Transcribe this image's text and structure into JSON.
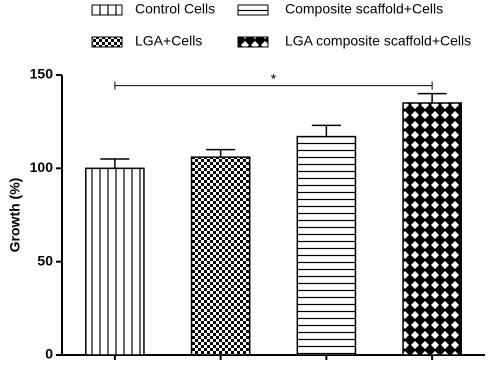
{
  "chart_data": {
    "type": "bar",
    "y_label": "Growth (%)",
    "categories": [
      "Control Cells",
      "LGA+Cells",
      "Composite scaffold+Cells",
      "LGA composite scaffold+Cells"
    ],
    "values": [
      100,
      106,
      117,
      135
    ],
    "errors": [
      5,
      4,
      6,
      5
    ],
    "patterns": [
      "vertical",
      "checker",
      "horizontal",
      "diamond"
    ],
    "color": "#000000",
    "ylim": [
      0,
      150
    ],
    "yticks": [
      0,
      50,
      100,
      150
    ],
    "significance": {
      "label": "*",
      "pair": [
        0,
        3
      ]
    }
  }
}
